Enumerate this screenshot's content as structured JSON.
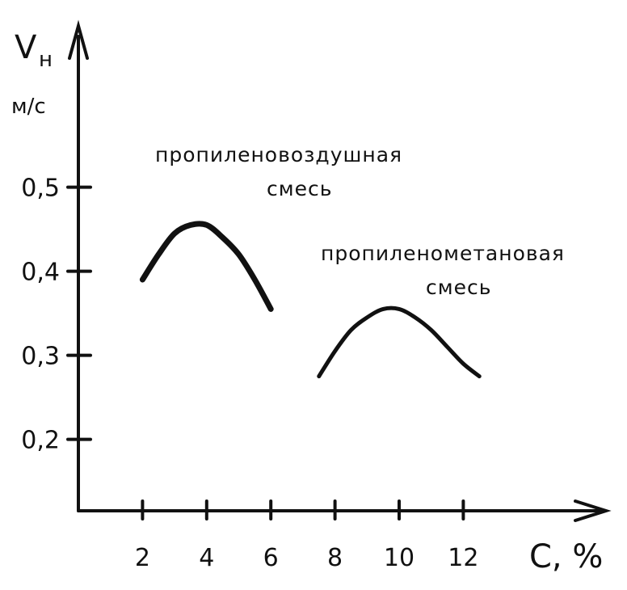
{
  "chart_data": {
    "type": "line",
    "ylabel": "V",
    "ylabel_sub": "н",
    "yunit": "м/с",
    "xlabel": "C, %",
    "xlim": [
      0,
      14.5
    ],
    "ylim": [
      0.1,
      0.62
    ],
    "x_ticks": [
      {
        "value": 2,
        "label": "2"
      },
      {
        "value": 4,
        "label": "4"
      },
      {
        "value": 6,
        "label": "6"
      },
      {
        "value": 8,
        "label": "8"
      },
      {
        "value": 10,
        "label": "10"
      },
      {
        "value": 12,
        "label": "12"
      }
    ],
    "y_ticks": [
      {
        "value": 0.2,
        "label": "0,2"
      },
      {
        "value": 0.3,
        "label": "0,3"
      },
      {
        "value": 0.4,
        "label": "0,4"
      },
      {
        "value": 0.5,
        "label": "0,5"
      }
    ],
    "grid": false,
    "series": [
      {
        "name": "пропиленовоздушная смесь",
        "label_lines": [
          "пропиленовоздушная",
          "смесь"
        ],
        "x": [
          2.0,
          2.5,
          3.0,
          3.5,
          4.0,
          4.5,
          5.0,
          5.5,
          6.0
        ],
        "y": [
          0.39,
          0.42,
          0.445,
          0.455,
          0.455,
          0.44,
          0.42,
          0.39,
          0.355
        ]
      },
      {
        "name": "пропиленометановая смесь",
        "label_lines": [
          "пропиленометановая",
          "смесь"
        ],
        "x": [
          7.5,
          8.0,
          8.5,
          9.0,
          9.5,
          10.0,
          10.5,
          11.0,
          11.5,
          12.0,
          12.5
        ],
        "y": [
          0.275,
          0.305,
          0.33,
          0.345,
          0.355,
          0.355,
          0.345,
          0.33,
          0.31,
          0.29,
          0.275
        ]
      }
    ]
  }
}
